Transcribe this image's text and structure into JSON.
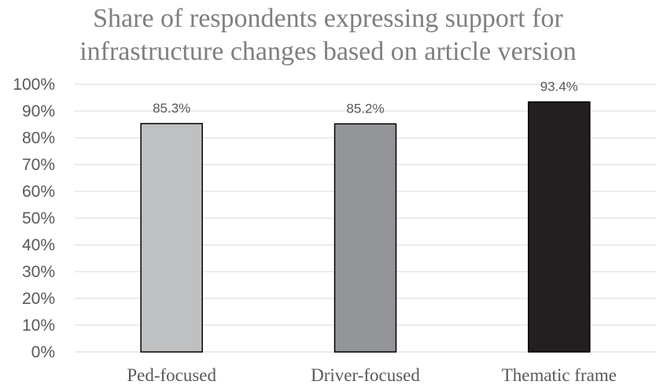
{
  "chart_data": {
    "type": "bar",
    "title": [
      "Share of respondents expressing support for",
      "infrastructure changes based on article version"
    ],
    "categories": [
      "Ped-focused",
      "Driver-focused",
      "Thematic frame"
    ],
    "values": [
      85.3,
      85.2,
      93.4
    ],
    "data_labels": [
      "85.3%",
      "85.2%",
      "93.4%"
    ],
    "bar_colors": [
      "#bfc0c2",
      "#939598",
      "#231f20"
    ],
    "ylim": [
      0,
      100
    ],
    "yticks": [
      0,
      10,
      20,
      30,
      40,
      50,
      60,
      70,
      80,
      90,
      100
    ],
    "ytick_labels": [
      "0%",
      "10%",
      "20%",
      "30%",
      "40%",
      "50%",
      "60%",
      "70%",
      "80%",
      "90%",
      "100%"
    ],
    "grid": true,
    "legend": "none",
    "xlabel": "",
    "ylabel": ""
  }
}
